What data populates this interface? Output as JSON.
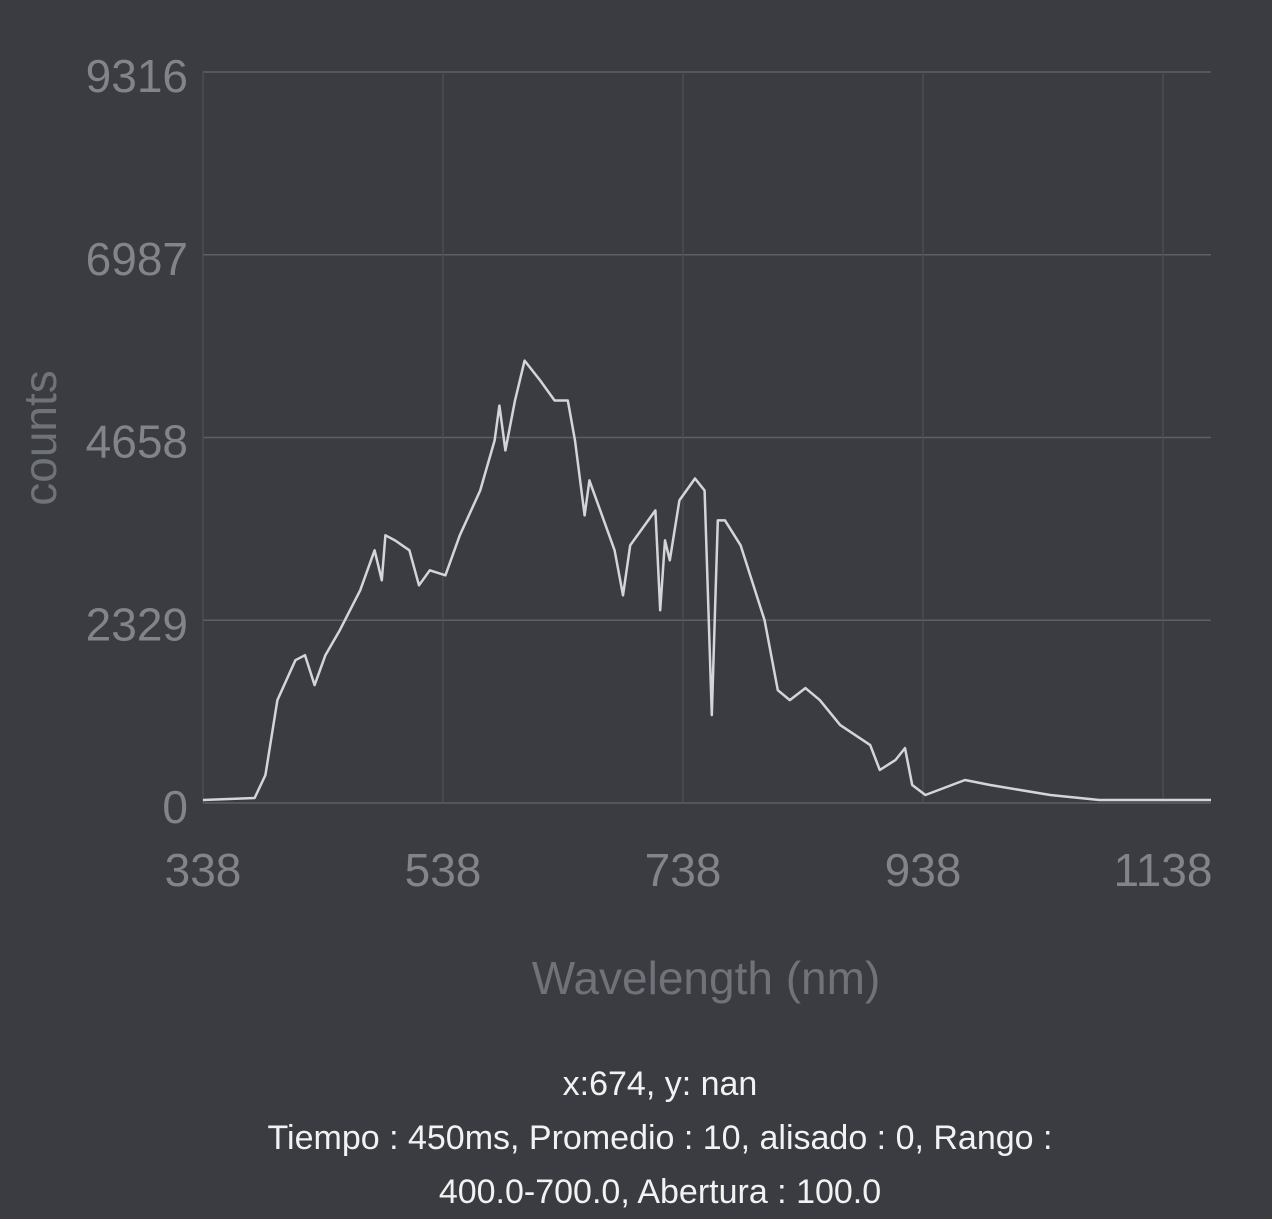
{
  "chart_data": {
    "type": "line",
    "x_label": "Wavelength (nm)",
    "y_label": "counts",
    "x": [
      338,
      381,
      390,
      400,
      415,
      423,
      431,
      440,
      452,
      469,
      481,
      487,
      490,
      498,
      510,
      518,
      527,
      540,
      552,
      569,
      581,
      585,
      590,
      598,
      606,
      619,
      631,
      642,
      648,
      656,
      660,
      681,
      688,
      694,
      715,
      719,
      723,
      727,
      735,
      748,
      756,
      762,
      767,
      773,
      786,
      806,
      817,
      827,
      840,
      852,
      869,
      894,
      902,
      915,
      923,
      929,
      940,
      973,
      994,
      1044,
      1085,
      1178
    ],
    "values": [
      38,
      64,
      356,
      1311,
      1820,
      1884,
      1502,
      1884,
      2202,
      2711,
      3220,
      2838,
      3411,
      3347,
      3220,
      2774,
      2965,
      2902,
      3411,
      3983,
      4620,
      5065,
      4493,
      5129,
      5638,
      5384,
      5129,
      5129,
      4620,
      3665,
      4111,
      3220,
      2647,
      3284,
      3729,
      2456,
      3347,
      3093,
      3856,
      4136,
      3983,
      1120,
      3602,
      3602,
      3284,
      2329,
      1438,
      1311,
      1464,
      1311,
      993,
      738,
      420,
      547,
      700,
      229,
      102,
      293,
      229,
      102,
      38,
      38
    ],
    "color": "#d4d5d9",
    "xlim": [
      338,
      1178
    ],
    "ylim": [
      0,
      9316
    ],
    "xticks": [
      338,
      538,
      738,
      938,
      1138
    ],
    "yticks": [
      0,
      2329,
      4658,
      6987,
      9316
    ],
    "grid": true,
    "annotations": [
      "x:674,  y: nan",
      "Tiempo : 450ms,  Promedio : 10,  alisado : 0, Rango :",
      "400.0-700.0, Abertura : 100.0"
    ]
  }
}
